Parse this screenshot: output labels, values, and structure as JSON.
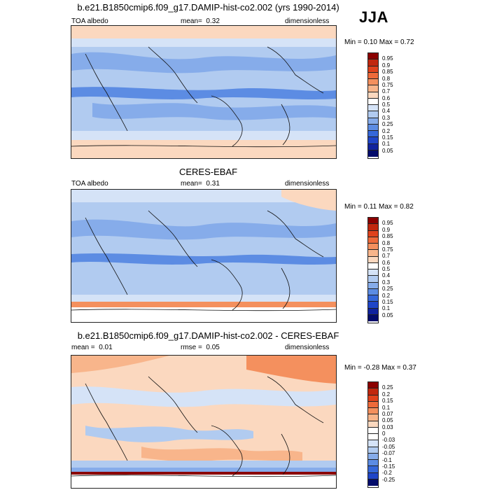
{
  "season": "JJA",
  "panels": [
    {
      "id": "model",
      "title": "b.e21.B1850cmip6.f09_g17.DAMIP-hist-co2.002 (yrs 1990-2014)",
      "left_label": "TOA albedo",
      "mid_label": "mean=",
      "mid_value": "0.32",
      "right_label": "dimensionless",
      "minmax": "Min =  0.10 Max =  0.72",
      "levels": [
        "0.95",
        "0.9",
        "0.85",
        "0.8",
        "0.75",
        "0.7",
        "0.6",
        "0.5",
        "0.4",
        "0.3",
        "0.25",
        "0.2",
        "0.15",
        "0.1",
        "0.05"
      ],
      "colors": [
        "#8b0000",
        "#c1270e",
        "#e0421c",
        "#ee6a3a",
        "#f4905e",
        "#f8b58b",
        "#fbd8bf",
        "#ffffff",
        "#d5e3f7",
        "#b1cbf0",
        "#86acea",
        "#5c8ce3",
        "#3567d9",
        "#1f45c8",
        "#10239e",
        "#030c6b"
      ]
    },
    {
      "id": "obs",
      "title": "CERES-EBAF",
      "left_label": "TOA albedo",
      "mid_label": "mean=",
      "mid_value": "0.31",
      "right_label": "dimensionless",
      "minmax": "Min =  0.11 Max =  0.82",
      "levels": [
        "0.95",
        "0.9",
        "0.85",
        "0.8",
        "0.75",
        "0.7",
        "0.6",
        "0.5",
        "0.4",
        "0.3",
        "0.25",
        "0.2",
        "0.15",
        "0.1",
        "0.05"
      ],
      "colors": [
        "#8b0000",
        "#c1270e",
        "#e0421c",
        "#ee6a3a",
        "#f4905e",
        "#f8b58b",
        "#fbd8bf",
        "#ffffff",
        "#d5e3f7",
        "#b1cbf0",
        "#86acea",
        "#5c8ce3",
        "#3567d9",
        "#1f45c8",
        "#10239e",
        "#030c6b"
      ]
    },
    {
      "id": "diff",
      "title": "b.e21.B1850cmip6.f09_g17.DAMIP-hist-co2.002 - CERES-EBAF",
      "left_label": "mean =",
      "left_value": "0.01",
      "mid_label": "rmse =",
      "mid_value": "0.05",
      "right_label": "dimensionless",
      "minmax": "Min =  -0.28 Max =  0.37",
      "levels": [
        "0.25",
        "0.2",
        "0.15",
        "0.1",
        "0.07",
        "0.05",
        "0.03",
        "0",
        "-0.03",
        "-0.05",
        "-0.07",
        "-0.1",
        "-0.15",
        "-0.2",
        "-0.25"
      ],
      "colors": [
        "#8b0000",
        "#c1270e",
        "#e0421c",
        "#ee6a3a",
        "#f4905e",
        "#f8b58b",
        "#fbd8bf",
        "#ffffff",
        "#ffffff",
        "#d5e3f7",
        "#b1cbf0",
        "#86acea",
        "#5c8ce3",
        "#3567d9",
        "#1f45c8",
        "#030c6b"
      ]
    }
  ]
}
